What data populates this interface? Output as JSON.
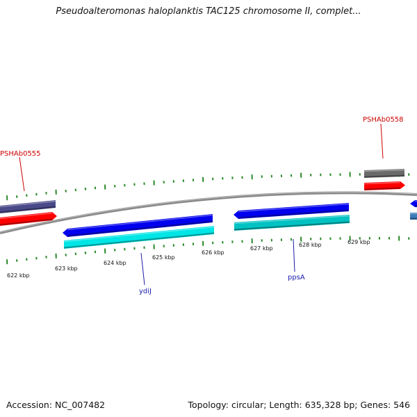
{
  "title": "Pseudoalteromonas haloplanktis TAC125 chromosome II, complet...",
  "footer": {
    "accession": "Accession: NC_007482",
    "topology": "Topology: circular; Length: 635,328 bp; Genes: 546"
  },
  "scale": {
    "ticks": [
      "622 kbp",
      "623 kbp",
      "624 kbp",
      "625 kbp",
      "626 kbp",
      "627 kbp",
      "628 kbp",
      "629 kbp"
    ]
  },
  "labels": {
    "outer_left": "PSHAb0555",
    "outer_right": "PSHAb0558",
    "inner_left": "ydiJ",
    "inner_right": "ppsA"
  },
  "colors": {
    "backbone": "#8a8a8a",
    "tick": "#2a8a2a",
    "outer_label": "#cc0000",
    "inner_label": "#1a1aaa",
    "red": "#ff0000",
    "blue": "#0000ee",
    "cyan": "#00e5e5",
    "teal": "#00c2c2",
    "slate": "#4a4a8a",
    "gray": "#6a6a6a",
    "steelblue": "#3a7ab8"
  }
}
